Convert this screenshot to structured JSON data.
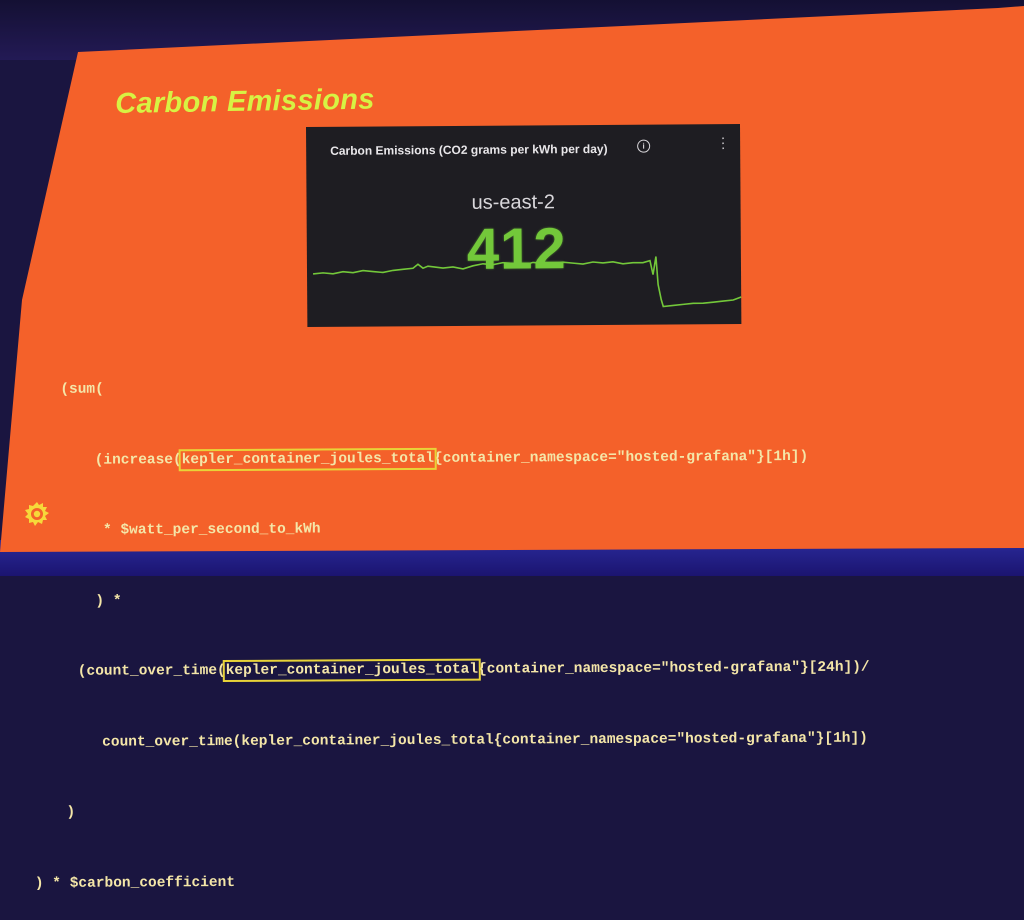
{
  "slide": {
    "title": "Carbon Emissions"
  },
  "panel": {
    "title": "Carbon Emissions (CO2 grams per kWh per day)",
    "info_icon": "info-icon",
    "menu_icon": "kebab-menu-icon",
    "region": "us-east-2",
    "value": "412",
    "value_color": "#73c83a",
    "sparkline_color": "#73c83a"
  },
  "code": {
    "l1": "(sum(",
    "l2_pre": "(increase(",
    "l2_hl": "kepler_container_joules_total",
    "l2_post": "{container_namespace=\"hosted-grafana\"}[1h])",
    "l3": "* $watt_per_second_to_kWh",
    "l4": ") *",
    "l5_pre": "(count_over_time(",
    "l5_hl": "kepler_container_joules_total",
    "l5_post": "{container_namespace=\"hosted-grafana\"}[24h])/",
    "l6": "count_over_time(kepler_container_joules_total{container_namespace=\"hosted-grafana\"}[1h])",
    "l7": ")",
    "l8": ") * $carbon_coefficient",
    "highlight_color": "#e8d338"
  },
  "colors": {
    "slide_background": "#f4612a",
    "title": "#d7f243",
    "code_text": "#f4e6a8"
  },
  "logo": "grafana-logo-icon"
}
